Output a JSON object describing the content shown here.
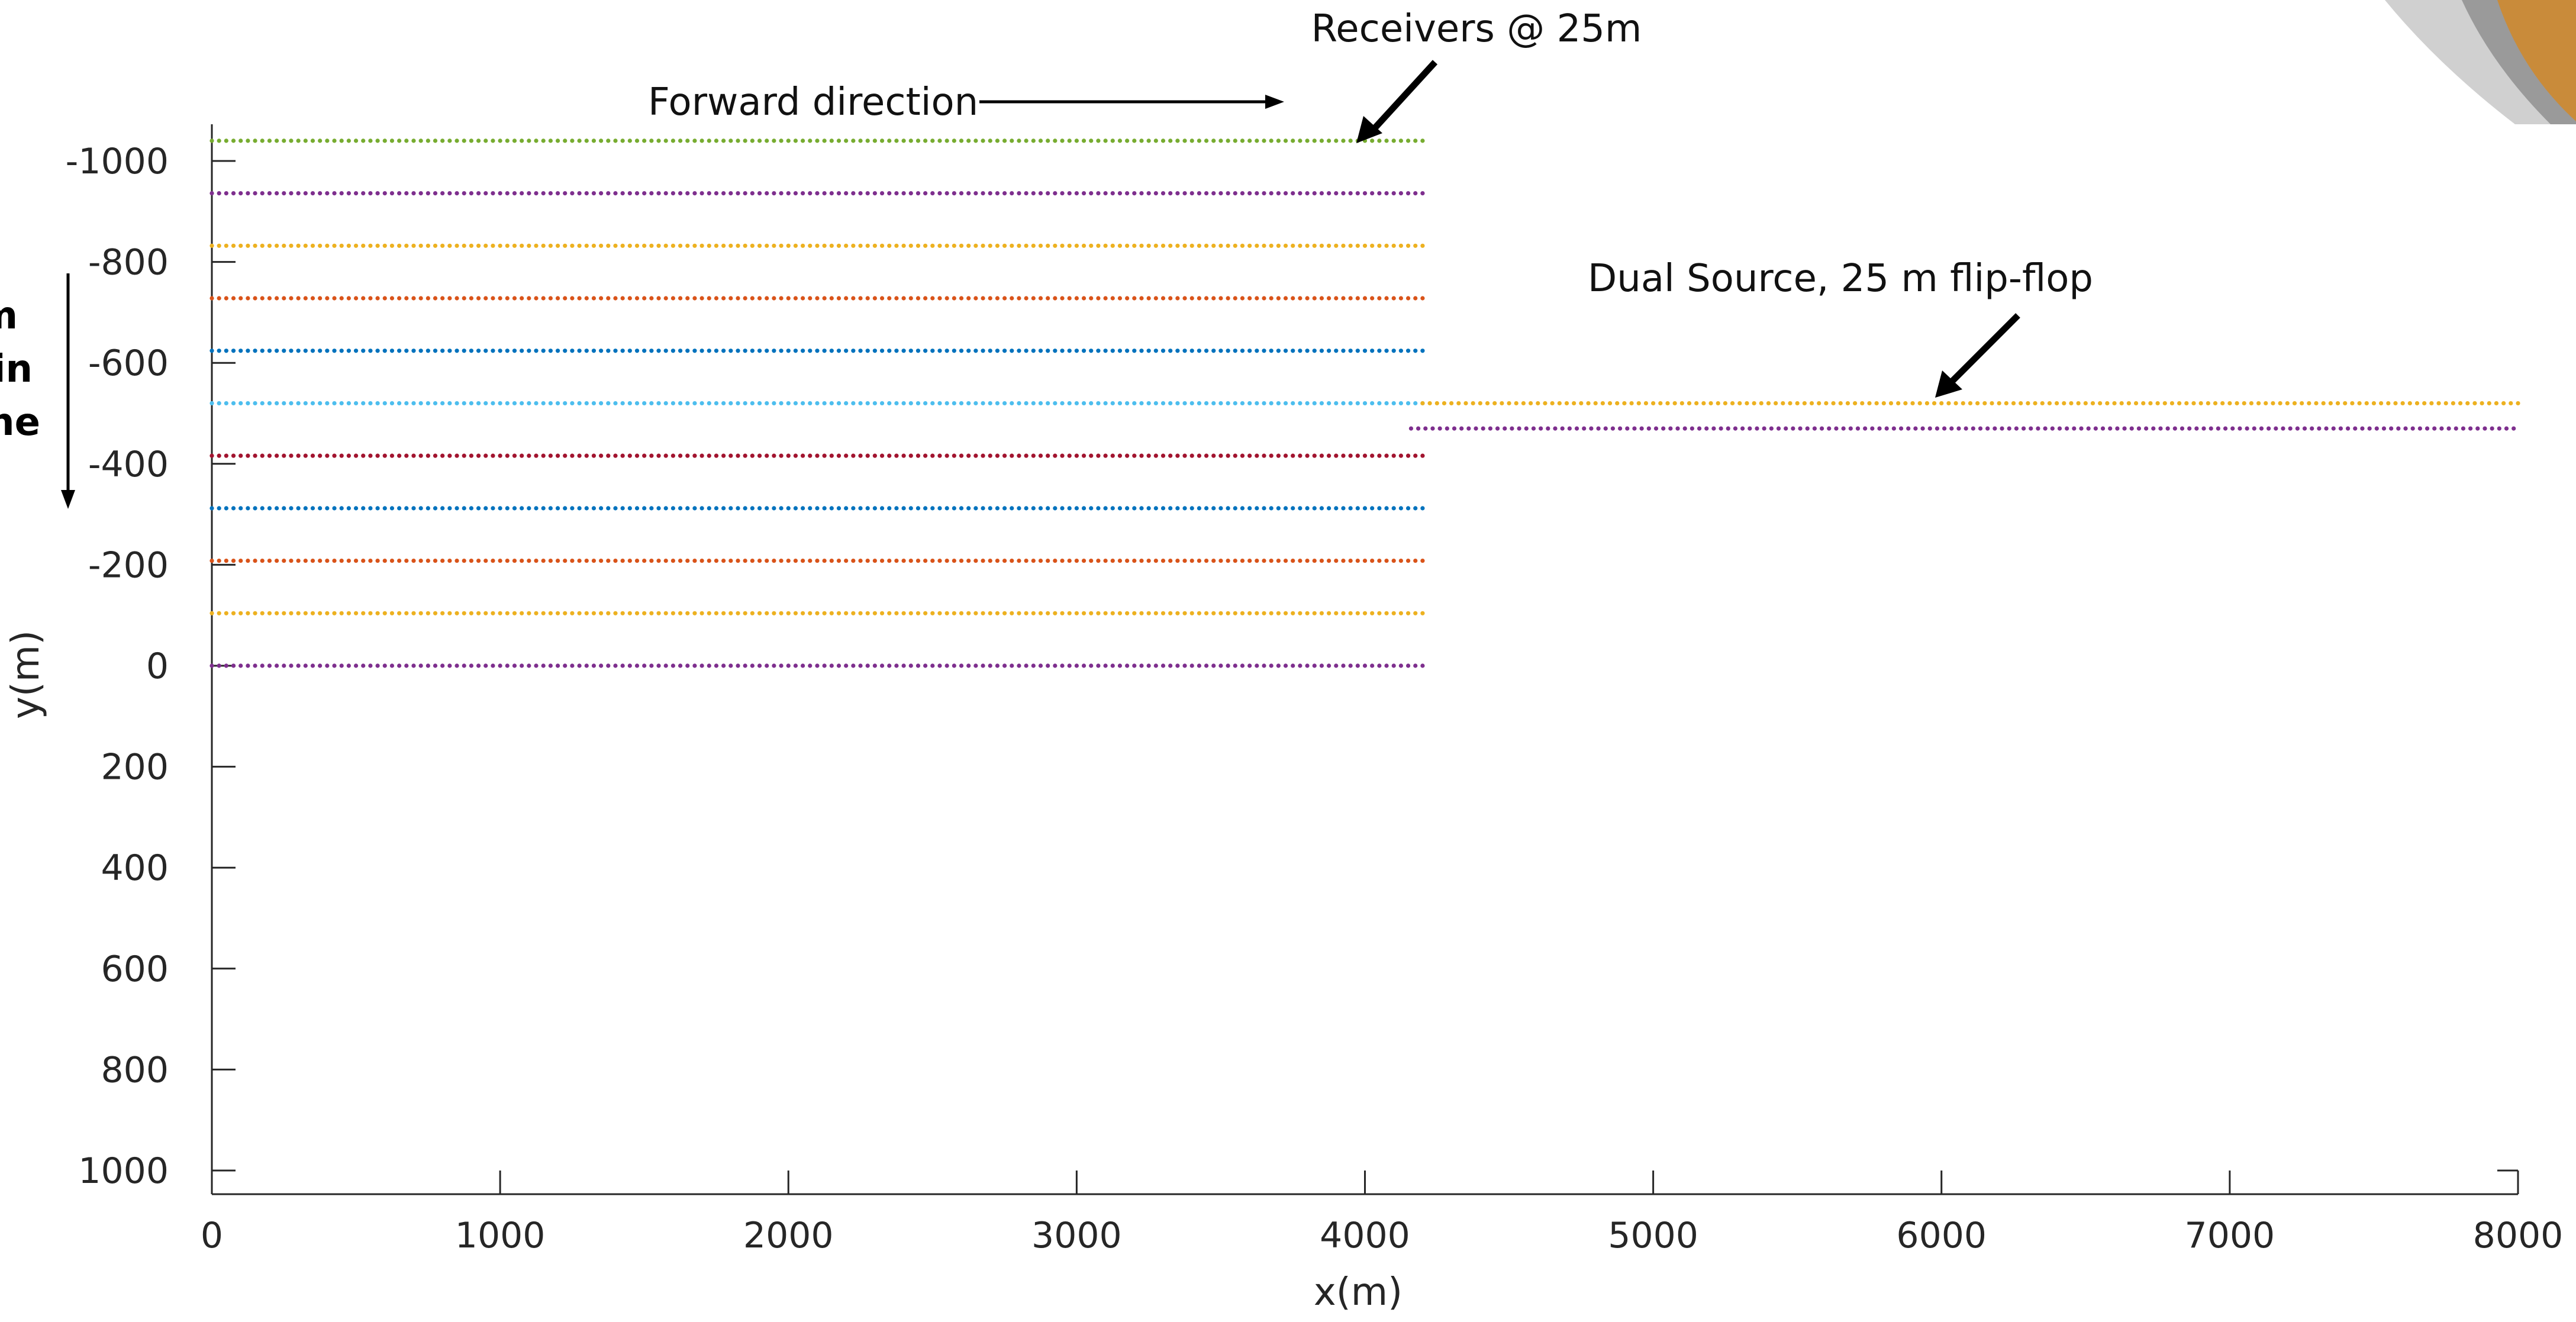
{
  "chart_data": {
    "type": "scatter",
    "title": "",
    "xlabel": "x(m)",
    "ylabel": "y(m)",
    "xlim": [
      0,
      8000
    ],
    "ylim": [
      -1000,
      1000
    ],
    "y_reversed": true,
    "grid": false,
    "xticks": [
      0,
      1000,
      2000,
      3000,
      4000,
      5000,
      6000,
      7000,
      8000
    ],
    "yticks": [
      -1000,
      -800,
      -600,
      -400,
      -200,
      0,
      200,
      400,
      600,
      800,
      1000
    ],
    "receiver_spacing_m": 25,
    "series": [
      {
        "x": [
          0,
          4200
        ],
        "y": -1040,
        "color": "#77ac30"
      },
      {
        "x": [
          0,
          4200
        ],
        "y": -936,
        "color": "#7e2f8e"
      },
      {
        "x": [
          0,
          4200
        ],
        "y": -832,
        "color": "#edb120"
      },
      {
        "x": [
          0,
          4200
        ],
        "y": -728,
        "color": "#d95319"
      },
      {
        "x": [
          0,
          4200
        ],
        "y": -624,
        "color": "#0072bd"
      },
      {
        "x": [
          0,
          4200
        ],
        "y": -520,
        "color": "#4dbeee"
      },
      {
        "x": [
          0,
          4200
        ],
        "y": -416,
        "color": "#a2142f"
      },
      {
        "x": [
          0,
          4200
        ],
        "y": -312,
        "color": "#0072bd"
      },
      {
        "x": [
          0,
          4200
        ],
        "y": -208,
        "color": "#d95319"
      },
      {
        "x": [
          0,
          4200
        ],
        "y": -104,
        "color": "#edb120"
      },
      {
        "x": [
          0,
          4200
        ],
        "y": 0,
        "color": "#7e2f8e"
      },
      {
        "x": [
          4200,
          8000
        ],
        "y": -520,
        "color": "#edb120"
      },
      {
        "x": [
          4160,
          8000
        ],
        "y": -470,
        "color": "#7e2f8e"
      }
    ],
    "annotations": [
      {
        "text": "Receivers @ 25m"
      },
      {
        "text": "Forward direction"
      },
      {
        "text": "Dual Source, 25 m flip-flop"
      }
    ]
  },
  "side_text": [
    "m",
    "in",
    "ne"
  ]
}
